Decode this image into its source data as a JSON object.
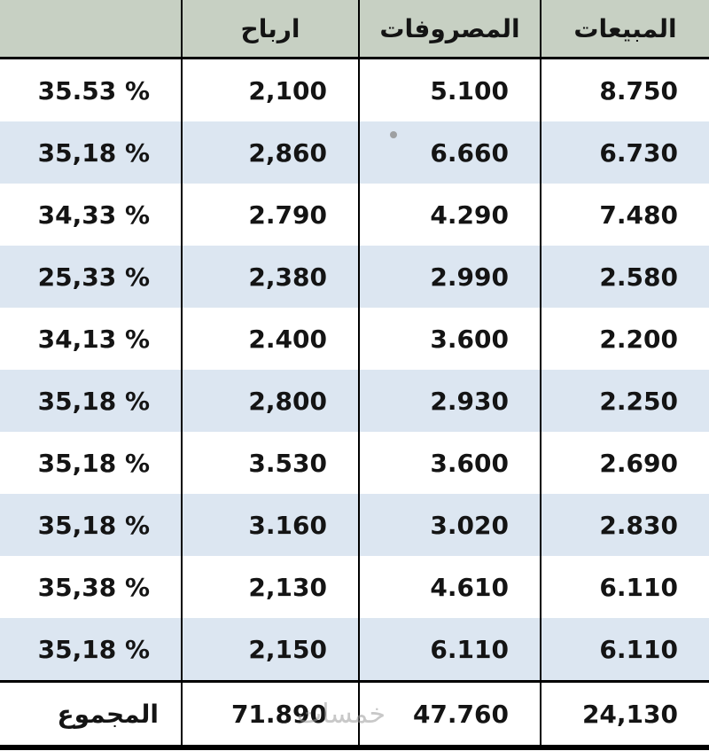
{
  "chart_data": {
    "type": "table",
    "direction": "rtl",
    "columns": [
      "المبيعات",
      "المصروفات",
      "ارباح",
      ""
    ],
    "rows": [
      [
        "8.750",
        "5.100",
        "2,100",
        "35.53 %"
      ],
      [
        "6.730",
        "6.660",
        "2,860",
        "35,18 %"
      ],
      [
        "7.480",
        "4.290",
        "2.790",
        "34,33 %"
      ],
      [
        "2.580",
        "2.990",
        "2,380",
        "25,33 %"
      ],
      [
        "2.200",
        "3.600",
        "2.400",
        "34,13 %"
      ],
      [
        "2.250",
        "2.930",
        "2,800",
        "35,18 %"
      ],
      [
        "2.690",
        "3.600",
        "3.530",
        "35,18 %"
      ],
      [
        "2.830",
        "3.020",
        "3.160",
        "35,18 %"
      ],
      [
        "6.110",
        "4.610",
        "2,130",
        "35,38 %"
      ],
      [
        "6.110",
        "6.110",
        "2,150",
        "35,18 %"
      ]
    ],
    "total_label": "المجموع",
    "total": [
      "24,130",
      "47.760",
      "71.890"
    ]
  },
  "watermark": "خمسات",
  "colors": {
    "header_bg": "#c7d0c3",
    "alt_row_bg": "#dce6f1",
    "border_color": "#000000",
    "text_color": "#141414"
  }
}
